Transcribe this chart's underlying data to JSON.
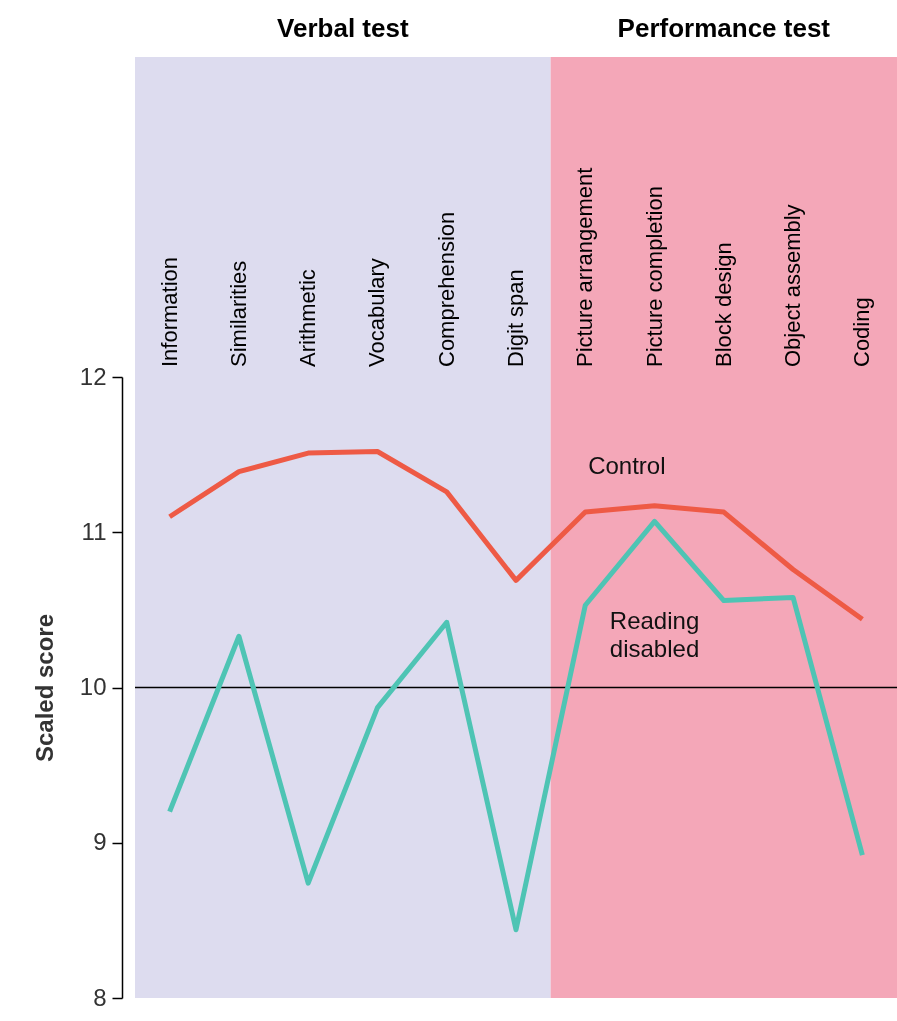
{
  "chart_data": {
    "type": "line",
    "categories": [
      "Information",
      "Similarities",
      "Arithmetic",
      "Vocabulary",
      "Comprehension",
      "Digit span",
      "Picture arrangement",
      "Picture completion",
      "Block design",
      "Object assembly",
      "Coding"
    ],
    "series": [
      {
        "name": "Control",
        "color": "#ee5a45",
        "values": [
          11.1,
          11.39,
          11.51,
          11.52,
          11.26,
          10.69,
          11.13,
          11.17,
          11.13,
          10.76,
          10.44
        ]
      },
      {
        "name": "Reading disabled",
        "color": "#4ec4b4",
        "values": [
          9.2,
          10.33,
          8.74,
          9.87,
          10.42,
          8.44,
          10.53,
          11.07,
          10.56,
          10.58,
          8.92
        ]
      }
    ],
    "ylabel": "Scaled score",
    "ylim": [
      8,
      12
    ],
    "yticks": [
      8,
      9,
      10,
      11,
      12
    ],
    "ref_lines": [
      {
        "axis": "y",
        "value": 10,
        "color": "#000000"
      }
    ],
    "bands": [
      {
        "axis": "x",
        "from": "Information",
        "to": "Digit span",
        "label": "Verbal test",
        "color": "#dddcef"
      },
      {
        "axis": "x",
        "from": "Picture arrangement",
        "to": "Coding",
        "label": "Performance test",
        "color": "#f4a7b8"
      }
    ],
    "grid": false,
    "legend": false,
    "marker": "none",
    "line_style": "solid"
  }
}
